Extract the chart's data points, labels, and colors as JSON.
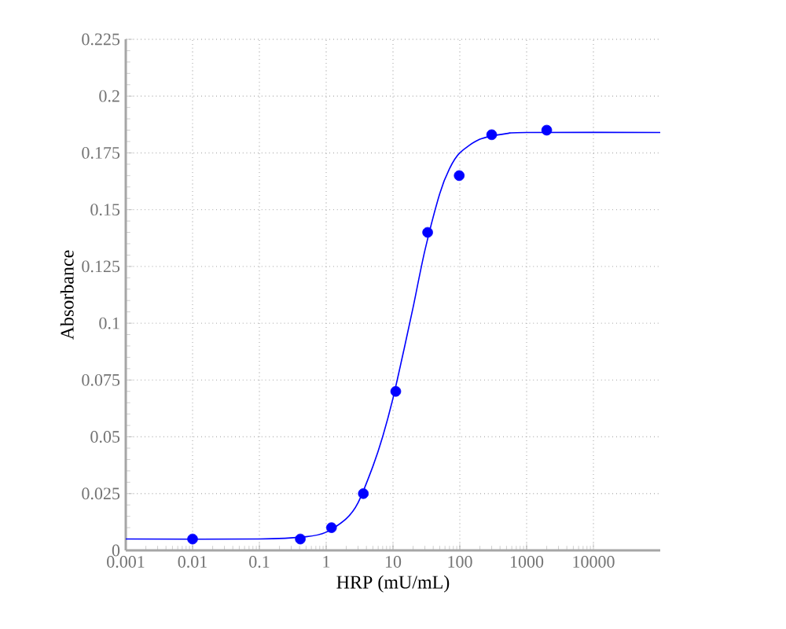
{
  "chart_data": {
    "type": "scatter",
    "xlabel": "HRP (mU/mL)",
    "ylabel": "Absorbance",
    "log": "x",
    "grid": true,
    "xlim": [
      0.001,
      100000
    ],
    "xticks": [
      0.001,
      0.01,
      0.1,
      1,
      10,
      100,
      1000,
      10000
    ],
    "ylim": [
      0,
      0.225
    ],
    "yticks": [
      0,
      0.025,
      0.05,
      0.075,
      0.1,
      0.125,
      0.15,
      0.175,
      0.2,
      0.225
    ],
    "series": [
      {
        "color": "#0000ff",
        "marker": "circle",
        "x": [
          0.01,
          0.41,
          1.2,
          3.6,
          11,
          33,
          98,
          300,
          2000
        ],
        "values": [
          0.005,
          0.005,
          0.01,
          0.025,
          0.07,
          0.14,
          0.165,
          0.183,
          0.185
        ]
      },
      {
        "type": "line",
        "marker": "none",
        "color": "#0000ff",
        "x": [
          0.001,
          0.1,
          0.5,
          1,
          2,
          3,
          5,
          7,
          10,
          15,
          20,
          30,
          50,
          70,
          100,
          200,
          500,
          1000,
          100000
        ],
        "values": [
          0.005,
          0.005,
          0.006,
          0.008,
          0.014,
          0.021,
          0.037,
          0.05,
          0.067,
          0.09,
          0.107,
          0.132,
          0.157,
          0.168,
          0.175,
          0.181,
          0.1835,
          0.184,
          0.184
        ]
      }
    ]
  }
}
